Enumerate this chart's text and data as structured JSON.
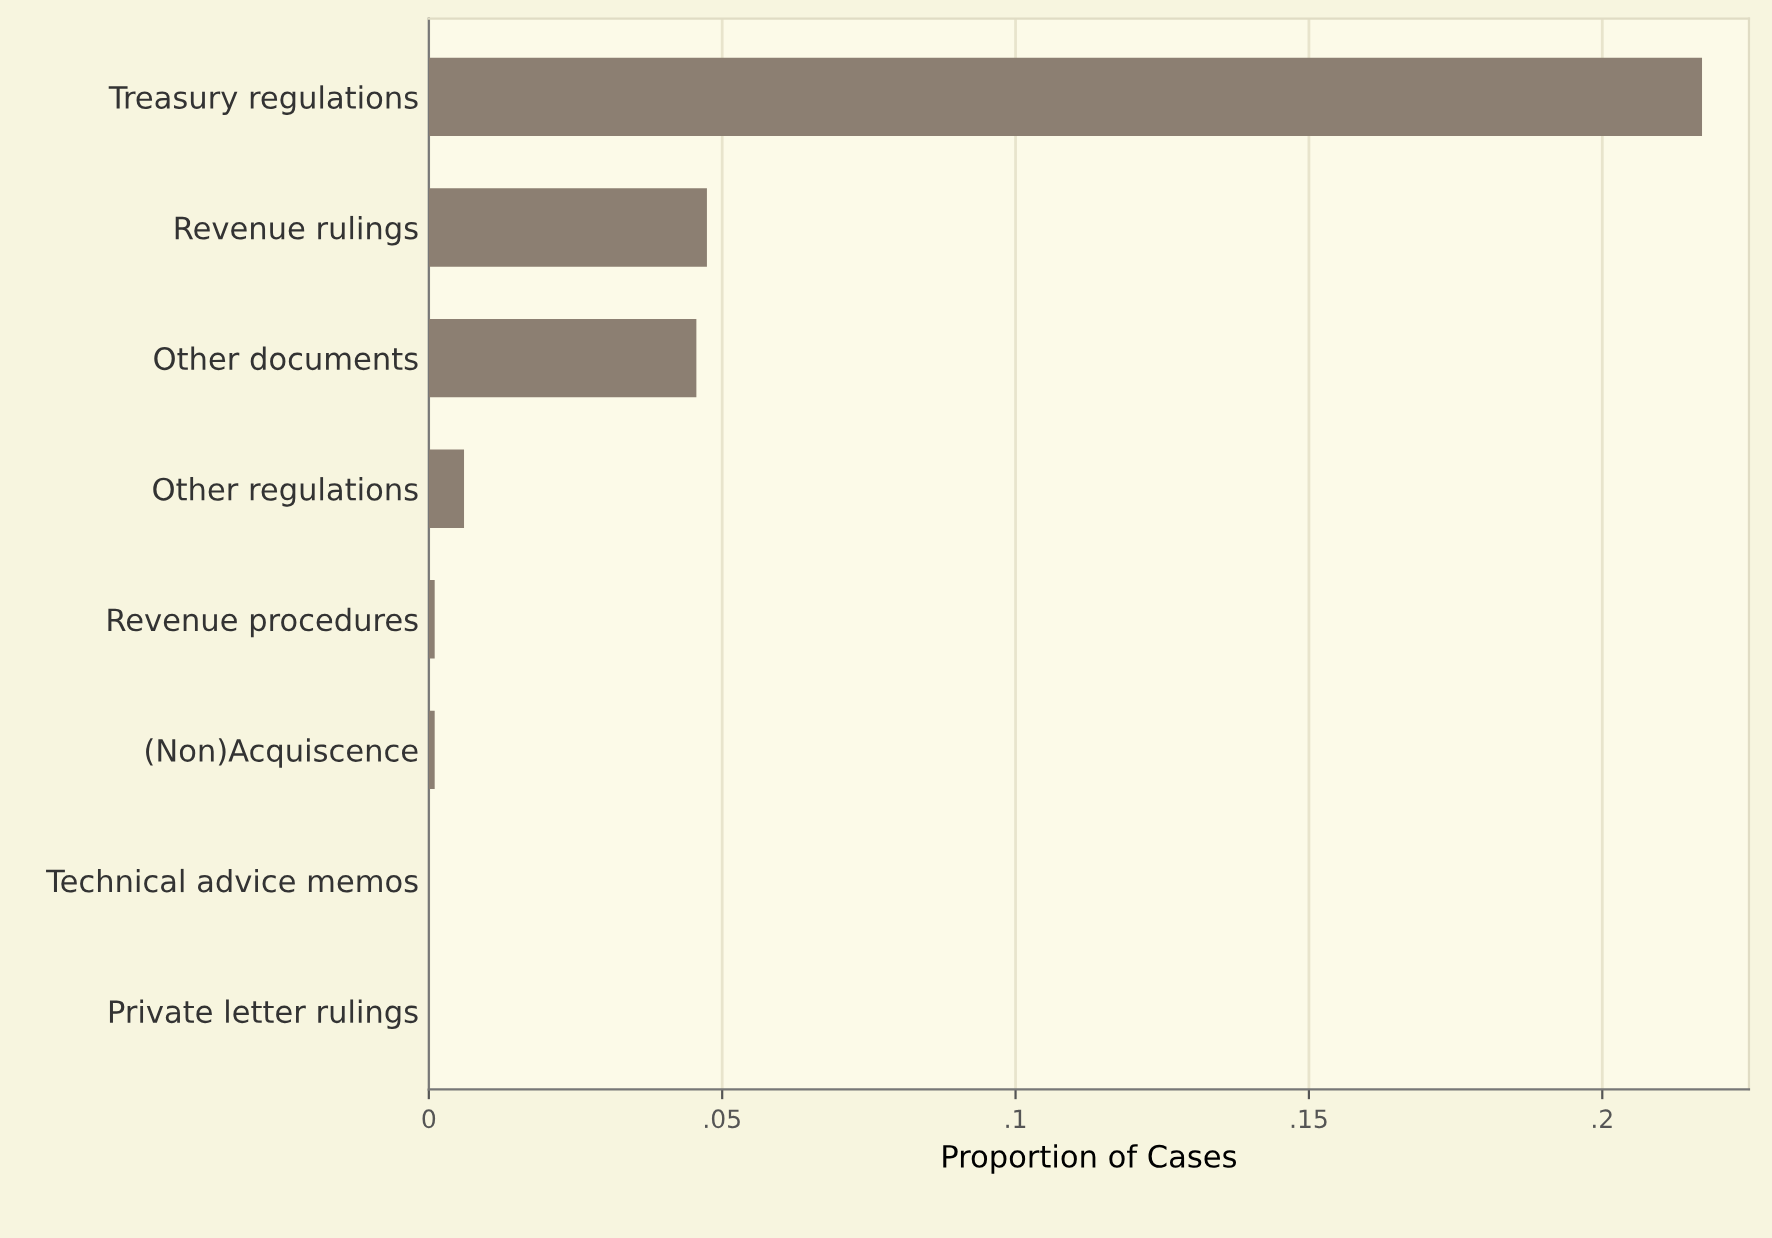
{
  "chart_data": {
    "type": "bar",
    "orientation": "horizontal",
    "xlabel": "Proportion of Cases",
    "categories": [
      "Treasury regulations",
      "Revenue rulings",
      "Other documents",
      "Other regulations",
      "Revenue procedures",
      "(Non)Acquiscence",
      "Technical advice memos",
      "Private letter rulings"
    ],
    "values": [
      0.217,
      0.0474,
      0.0456,
      0.006,
      0.001,
      0.001,
      0,
      0
    ],
    "color": "#8c7f72",
    "xlim": [
      0,
      0.225
    ],
    "xticks": [
      {
        "value": 0,
        "label": "0"
      },
      {
        "value": 0.05,
        "label": ".05"
      },
      {
        "value": 0.1,
        "label": ".1"
      },
      {
        "value": 0.15,
        "label": ".15"
      },
      {
        "value": 0.2,
        "label": ".2"
      }
    ],
    "grid": "x",
    "legend": false
  }
}
